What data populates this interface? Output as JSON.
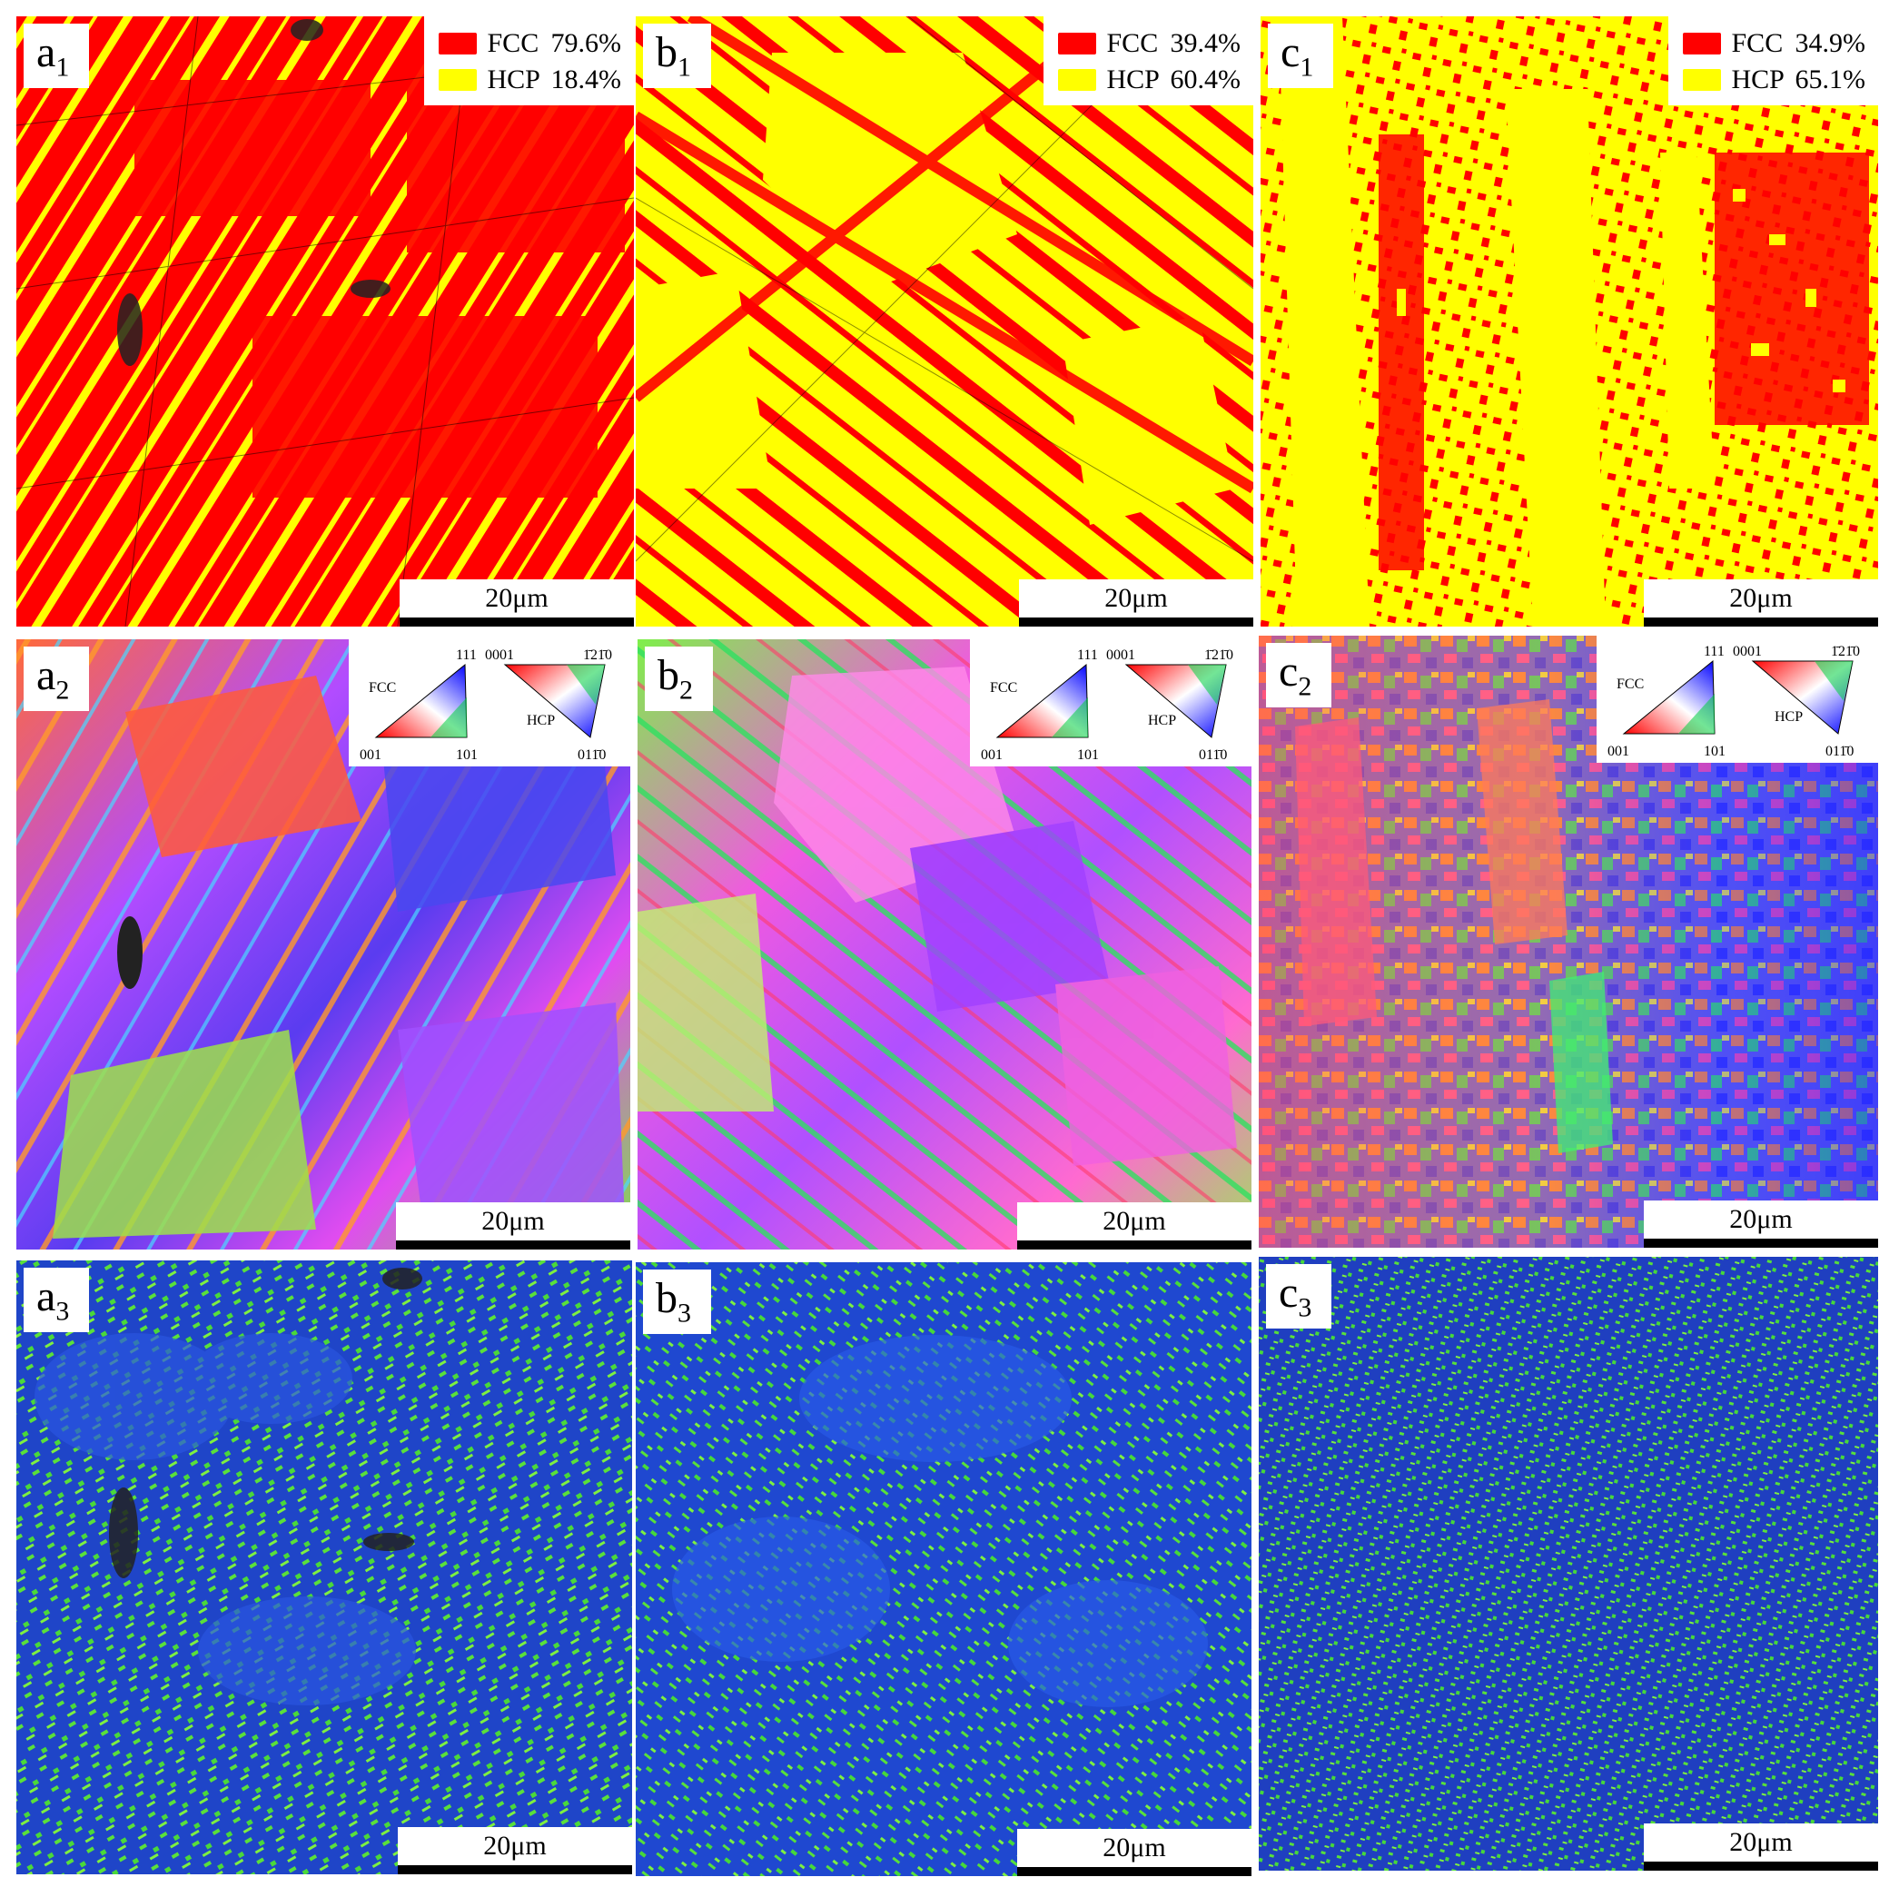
{
  "scale_bar_label": "20μm",
  "colors": {
    "fcc": "#ff0000",
    "hcp": "#ffff00",
    "kam_low": "#1f3fd0",
    "kam_high": "#58e23a"
  },
  "phase_maps": [
    {
      "letter": "a",
      "index": "1",
      "fcc_label": "FCC",
      "fcc_value": "79.6%",
      "hcp_label": "HCP",
      "hcp_value": "18.4%"
    },
    {
      "letter": "b",
      "index": "1",
      "fcc_label": "FCC",
      "fcc_value": "39.4%",
      "hcp_label": "HCP",
      "hcp_value": "60.4%"
    },
    {
      "letter": "c",
      "index": "1",
      "fcc_label": "FCC",
      "fcc_value": "34.9%",
      "hcp_label": "HCP",
      "hcp_value": "65.1%"
    }
  ],
  "ipf_maps": [
    {
      "letter": "a",
      "index": "2"
    },
    {
      "letter": "b",
      "index": "2"
    },
    {
      "letter": "c",
      "index": "2"
    }
  ],
  "kam_maps": [
    {
      "letter": "a",
      "index": "3"
    },
    {
      "letter": "b",
      "index": "3"
    },
    {
      "letter": "c",
      "index": "3"
    }
  ],
  "ipf_key": {
    "fcc_name": "FCC",
    "fcc_top": "111",
    "fcc_left": "001",
    "fcc_right": "101",
    "hcp_name": "HCP",
    "hcp_left": "0001",
    "hcp_right": "1̄21̄0",
    "hcp_bottom": "011̄0"
  }
}
